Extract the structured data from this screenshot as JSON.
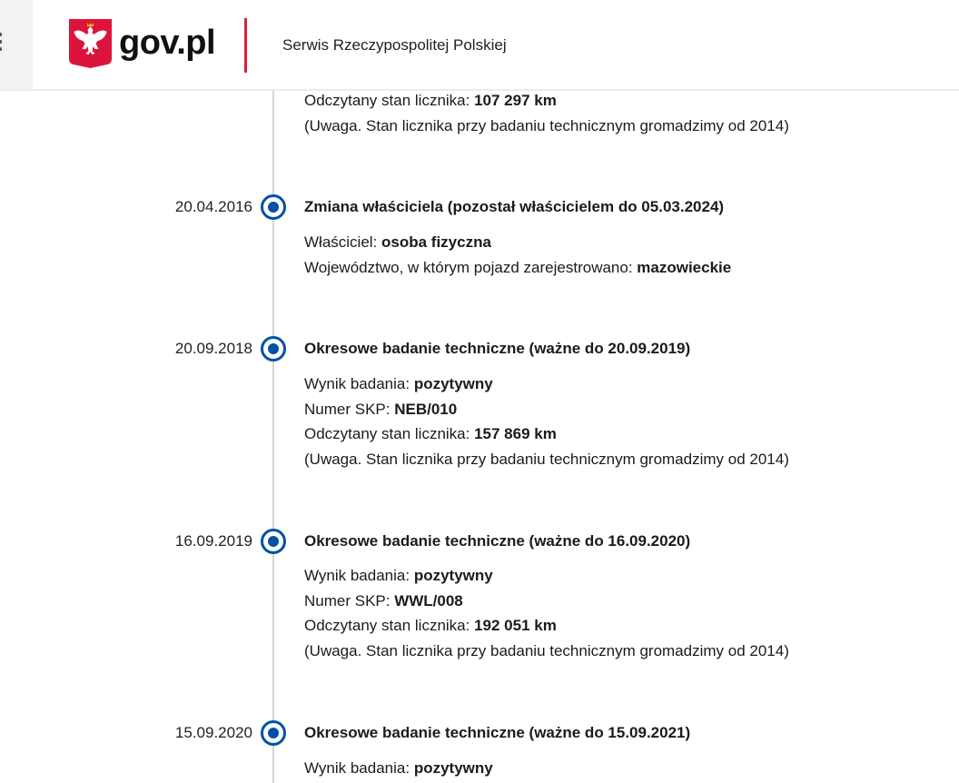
{
  "header": {
    "logo_text": "gov.pl",
    "service_name": "Serwis Rzeczypospolitej Polskiej",
    "brand_red": "#d4213d",
    "accent_blue": "#0052a5"
  },
  "partial_event": {
    "lines": [
      {
        "label": "Odczytany stan licznika: ",
        "value": "107 297 km"
      },
      {
        "label": "(Uwaga. Stan licznika przy badaniu technicznym gromadzimy od 2014)",
        "value": ""
      }
    ]
  },
  "events": [
    {
      "date": "20.04.2016",
      "title": "Zmiana właściciela (pozostał właścicielem do 05.03.2024)",
      "lines": [
        {
          "label": "Właściciel: ",
          "value": "osoba fizyczna"
        },
        {
          "label": "Województwo, w którym pojazd zarejestrowano: ",
          "value": "mazowieckie"
        }
      ]
    },
    {
      "date": "20.09.2018",
      "title": "Okresowe badanie techniczne (ważne do 20.09.2019)",
      "lines": [
        {
          "label": "Wynik badania: ",
          "value": "pozytywny"
        },
        {
          "label": "Numer SKP: ",
          "value": "NEB/010"
        },
        {
          "label": "Odczytany stan licznika: ",
          "value": "157 869 km"
        },
        {
          "label": "(Uwaga. Stan licznika przy badaniu technicznym gromadzimy od 2014)",
          "value": ""
        }
      ]
    },
    {
      "date": "16.09.2019",
      "title": "Okresowe badanie techniczne (ważne do 16.09.2020)",
      "lines": [
        {
          "label": "Wynik badania: ",
          "value": "pozytywny"
        },
        {
          "label": "Numer SKP: ",
          "value": "WWL/008"
        },
        {
          "label": "Odczytany stan licznika: ",
          "value": "192 051 km"
        },
        {
          "label": "(Uwaga. Stan licznika przy badaniu technicznym gromadzimy od 2014)",
          "value": ""
        }
      ]
    },
    {
      "date": "15.09.2020",
      "title": "Okresowe badanie techniczne (ważne do 15.09.2021)",
      "lines": [
        {
          "label": "Wynik badania: ",
          "value": "pozytywny"
        }
      ]
    }
  ]
}
